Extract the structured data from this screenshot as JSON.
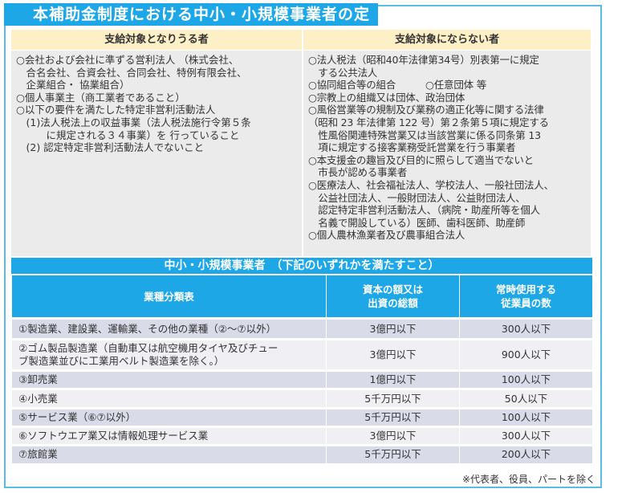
{
  "title": "本補助金制度における中小・小規模事業者の定義",
  "eligible": {
    "header": "支給対象となりうる者",
    "body": "○会社および会社に準ずる営利法人 （株式会社、\n　合名会社、合資会社、合同会社、特例有限会社、\n　企業組合・ 協業組合）\n○個人事業主（商工業者であること）\n○以下の要件を満たした特定非営利活動法人\n　(1)法人税法上の収益事業（法人税法施行令第５条\n　　　に規定される３４事業）を 行っていること\n　(2) 認定特定非営利活動法人でないこと"
  },
  "ineligible": {
    "header": "支給対象にならない者",
    "body": "○法人税法（昭和40年法律第34号）別表第一に規定\n　する公共法人\n○協同組合等の組合　　　○任意団体 等\n○宗教上の組織又は団体、政治団体\n○風俗営業等の規制及び業務の適正化等に関する法律\n（昭和 23 年法律第 122 号）第２条第５項に規定する\n　性風俗関連特殊営業又は当該営業に係る同条第 13\n　項に規定する接客業務受託営業を行う事業者\n○本支援金の趣旨及び目的に照らして適当でないと\n　市長が認める事業者\n○医療法人、社会福祉法人、学校法人、一般社団法人、\n　公益社団法人、一般財団法人、公益財団法人、\n　認定特定非営利活動法人、（病院・助産所等を個人\n　名義で開設している）医師、歯科医師、助産師\n○個人農林漁業者及び農事組合法人"
  },
  "sme": {
    "banner": "中小・小規模事業者　（下記のいずれかを満たすこと）",
    "headers": [
      "業種分類表",
      "資本の額又は\n出資の総額",
      "常時使用する\n従業員の数"
    ],
    "rows": [
      [
        "①製造業、建設業、運輸業、その他の業種（②～⑦以外）",
        "3億円以下",
        "300人以下"
      ],
      [
        "②ゴム製品製造業（自動車又は航空機用タイヤ及びチュー\nブ製造業並びに工業用ベルト製造業を除く。）",
        "3億円以下",
        "900人以下"
      ],
      [
        "③卸売業",
        "1億円以下",
        "100人以下"
      ],
      [
        "④小売業",
        "5千万円以下",
        "50人以下"
      ],
      [
        "⑤サービス業（⑥⑦以外）",
        "5千万円以下",
        "100人以下"
      ],
      [
        "⑥ソフトウエア業又は情報処理サービス業",
        "3億円以下",
        "300人以下"
      ],
      [
        "⑦旅館業",
        "5千万円以下",
        "200人以下"
      ]
    ],
    "note": "※代表者、役員、パートを除く"
  },
  "colors": {
    "accent": "#1da7e6",
    "header_bg": "#fdefc6",
    "body_bg": "#ebebeb"
  }
}
